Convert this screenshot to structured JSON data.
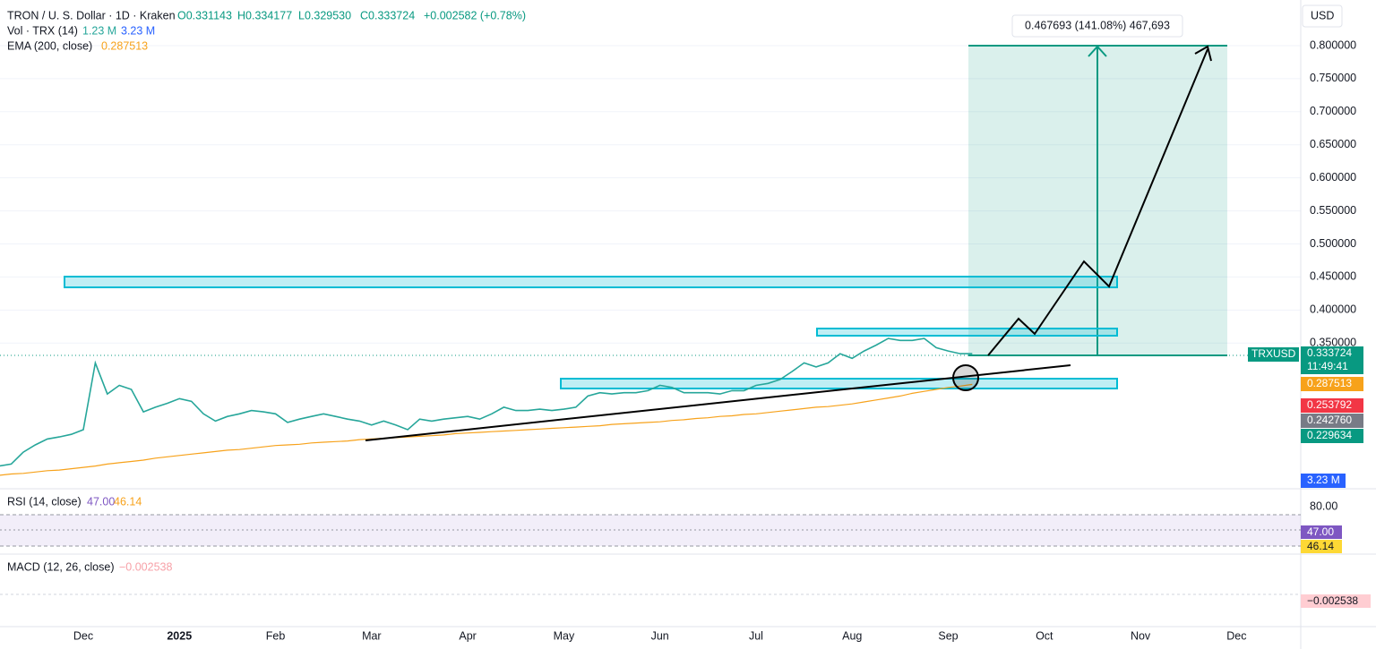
{
  "header": {
    "symbol": "TRON / U. S. Dollar · 1D · Kraken",
    "open": "O0.331143",
    "high": "H0.334177",
    "low": "L0.329530",
    "close": "C0.333724",
    "change": "+0.002582 (+0.78%)",
    "volume_label": "Vol · TRX (14)",
    "volume_value": "1.23 M",
    "volume_ma": "3.23 M",
    "ema_value": "0.287513"
  },
  "price_scale": {
    "currency": "USD",
    "last_price": "0.333724",
    "countdown": "11:49:41",
    "level_red": "0.253792",
    "level_gray": "0.242760",
    "level_green": "0.229634"
  },
  "rsi": {
    "title": "RSI (14, close)",
    "value": "47.00",
    "ma": "46.14",
    "upper_tick": "80.00"
  },
  "macd": {
    "title": "MACD (12, 26, close)",
    "value": "−0.002538"
  },
  "measure_label": "0.467693 (141.08%) 467,693",
  "chart_data": {
    "type": "line",
    "categories": [
      null,
      null,
      null,
      null,
      null,
      null,
      null,
      "Dec",
      null,
      null,
      null,
      null,
      null,
      null,
      null,
      "2025",
      null,
      null,
      null,
      null,
      null,
      null,
      null,
      "Feb",
      null,
      null,
      null,
      null,
      null,
      null,
      null,
      "Mar",
      null,
      null,
      null,
      null,
      null,
      null,
      null,
      "Apr",
      null,
      null,
      null,
      null,
      null,
      null,
      null,
      "May",
      null,
      null,
      null,
      null,
      null,
      null,
      null,
      "Jun",
      null,
      null,
      null,
      null,
      null,
      null,
      null,
      "Jul",
      null,
      null,
      null,
      null,
      null,
      null,
      null,
      "Aug",
      null,
      null,
      null,
      null,
      null,
      null,
      null,
      "Sep",
      null,
      null,
      null,
      null,
      null,
      null,
      null,
      "Oct",
      null,
      null,
      null,
      null,
      null,
      null,
      null,
      "Nov",
      null,
      null,
      null,
      null,
      null,
      null,
      null,
      "Dec",
      null,
      null,
      null,
      null,
      null
    ],
    "series": [
      {
        "name": "TRXUSD",
        "color": "#26a69a",
        "values": [
          0.164,
          0.167,
          0.185,
          0.196,
          0.205,
          0.208,
          0.212,
          0.219,
          0.32,
          0.273,
          0.286,
          0.28,
          0.246,
          0.253,
          0.259,
          0.266,
          0.262,
          0.243,
          0.232,
          0.239,
          0.243,
          0.248,
          0.246,
          0.243,
          0.23,
          0.235,
          0.239,
          0.243,
          0.239,
          0.235,
          0.232,
          0.226,
          0.232,
          0.226,
          0.219,
          0.235,
          0.232,
          0.235,
          0.237,
          0.239,
          0.235,
          0.243,
          0.253,
          0.248,
          0.248,
          0.25,
          0.248,
          0.25,
          0.253,
          0.27,
          0.275,
          0.273,
          0.275,
          0.275,
          0.278,
          0.286,
          0.283,
          0.275,
          0.275,
          0.275,
          0.273,
          0.278,
          0.278,
          0.286,
          0.289,
          0.295,
          0.307,
          0.32,
          0.314,
          0.32,
          0.334,
          0.327,
          0.338,
          0.347,
          0.357,
          0.354,
          0.354,
          0.357,
          0.343,
          0.338,
          0.334,
          0.334,
          null,
          null,
          null,
          null,
          null,
          null,
          null,
          null,
          null,
          null,
          null,
          null,
          null,
          null,
          null,
          null,
          null,
          null,
          null,
          null,
          null,
          null,
          null,
          null,
          null,
          null,
          null
        ]
      },
      {
        "name": "EMA (200, close)",
        "color": "#f7a21b",
        "values": [
          0.15,
          0.152,
          0.153,
          0.155,
          0.157,
          0.158,
          0.16,
          0.162,
          0.164,
          0.167,
          0.169,
          0.171,
          0.173,
          0.176,
          0.178,
          0.18,
          0.182,
          0.184,
          0.186,
          0.188,
          0.189,
          0.191,
          0.193,
          0.195,
          0.196,
          0.197,
          0.199,
          0.2,
          0.201,
          0.202,
          0.204,
          0.205,
          0.206,
          0.207,
          0.208,
          0.209,
          0.21,
          0.211,
          0.213,
          0.214,
          0.215,
          0.216,
          0.217,
          0.218,
          0.219,
          0.22,
          0.221,
          0.222,
          0.223,
          0.224,
          0.225,
          0.227,
          0.228,
          0.229,
          0.23,
          0.231,
          0.233,
          0.234,
          0.236,
          0.237,
          0.239,
          0.24,
          0.242,
          0.243,
          0.245,
          0.247,
          0.249,
          0.251,
          0.253,
          0.254,
          0.256,
          0.258,
          0.261,
          0.264,
          0.267,
          0.27,
          0.274,
          0.277,
          0.28,
          0.283,
          0.285,
          0.2875,
          null,
          null,
          null,
          null,
          null,
          null,
          null,
          null,
          null,
          null,
          null,
          null,
          null,
          null,
          null,
          null,
          null,
          null,
          null,
          null,
          null,
          null,
          null,
          null,
          null,
          null,
          null
        ]
      }
    ],
    "ylim": [
      0.131,
      0.869
    ],
    "yticks": [
      {
        "value": 0.35,
        "label": "0.350000"
      },
      {
        "value": 0.4,
        "label": "0.400000"
      },
      {
        "value": 0.45,
        "label": "0.450000"
      },
      {
        "value": 0.5,
        "label": "0.500000"
      },
      {
        "value": 0.55,
        "label": "0.550000"
      },
      {
        "value": 0.6,
        "label": "0.600000"
      },
      {
        "value": 0.65,
        "label": "0.650000"
      },
      {
        "value": 0.7,
        "label": "0.700000"
      },
      {
        "value": 0.75,
        "label": "0.750000"
      },
      {
        "value": 0.8,
        "label": "0.800000"
      }
    ],
    "grid": true
  }
}
